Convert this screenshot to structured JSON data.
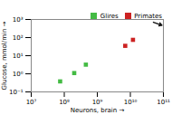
{
  "chart_data": {
    "type": "scatter",
    "xlabel": "Neurons, brain",
    "ylabel": "Glucose, mmol/min",
    "log": true,
    "grid": false,
    "legend": "upper right",
    "xlim": [
      10000000.0,
      100000000000.0
    ],
    "ylim": [
      0.1,
      1000
    ],
    "xticks": [
      {
        "value": 10000000.0,
        "label": "10⁷"
      },
      {
        "value": 100000000.0,
        "label": "10⁸"
      },
      {
        "value": 1000000000.0,
        "label": "10⁹"
      },
      {
        "value": 10000000000.0,
        "label": "10¹⁰"
      },
      {
        "value": 100000000000.0,
        "label": "10¹¹"
      }
    ],
    "yticks": [
      {
        "value": 0.1,
        "label": "10⁻¹"
      },
      {
        "value": 1,
        "label": "10⁰"
      },
      {
        "value": 10,
        "label": "10¹"
      },
      {
        "value": 100,
        "label": "10²"
      },
      {
        "value": 1000,
        "label": "10³"
      }
    ],
    "series": [
      {
        "name": "Glires",
        "color": "#44bb44",
        "marker": "square",
        "x": [
          75000000.0,
          200000000.0,
          450000000.0
        ],
        "values": [
          0.38,
          1.1,
          3.2
        ]
      },
      {
        "name": "Primates",
        "color": "#cc2222",
        "marker": "square",
        "x": [
          7000000000.0,
          12000000000.0
        ],
        "values": [
          35,
          75
        ]
      }
    ],
    "annotations": [
      {
        "type": "arrow",
        "x1": 50000000000.0,
        "y1": 700,
        "x2": 90000000000.0,
        "y2": 480,
        "color": "#111111"
      }
    ]
  }
}
